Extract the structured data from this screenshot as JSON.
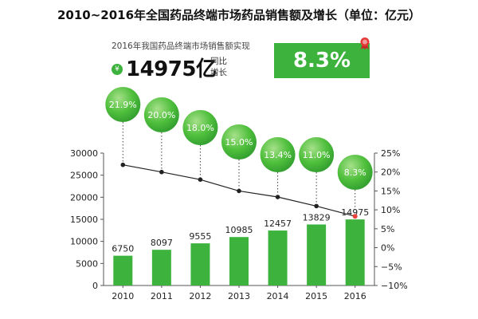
{
  "title": "2010~2016年全国药品终端市场药品销售额及增长（单位：亿元）",
  "header": {
    "subtitle": "2016年我国药品终端市场销售额实现",
    "currency_symbol": "¥",
    "amount": "14975亿",
    "growth_label_1": "同比",
    "growth_label_2": "增长",
    "growth_rate": "8.3%"
  },
  "colors": {
    "bar": "#3db23d",
    "bubble": "#3db23d",
    "line": "#222222",
    "last_point": "#e8403a"
  },
  "chart_data": {
    "type": "bar",
    "categories": [
      "2010",
      "2011",
      "2012",
      "2013",
      "2014",
      "2015",
      "2016"
    ],
    "series": [
      {
        "values": [
          6750,
          8097,
          9555,
          10985,
          12457,
          13829,
          14975
        ]
      },
      {
        "type": "line",
        "axis": "right",
        "values": [
          21.9,
          20.0,
          18.0,
          15.0,
          13.4,
          11.0,
          8.3
        ]
      }
    ],
    "bar_labels": [
      "6750",
      "8097",
      "9555",
      "10985",
      "12457",
      "13829",
      "14975"
    ],
    "bubble_labels": [
      "21.9%",
      "20.0%",
      "18.0%",
      "15.0%",
      "13.4%",
      "11.0%",
      "8.3%"
    ],
    "ylim": [
      0,
      30000
    ],
    "yticks": [
      0,
      5000,
      10000,
      15000,
      20000,
      25000,
      30000
    ],
    "ytick_labels": [
      "0",
      "5000",
      "10000",
      "15000",
      "20000",
      "25000",
      "30000"
    ],
    "y2lim": [
      -10,
      25
    ],
    "y2ticks": [
      -10,
      -5,
      0,
      5,
      10,
      15,
      20,
      25
    ],
    "y2tick_labels": [
      "−10%",
      "−5%",
      "0%",
      "5%",
      "10%",
      "15%",
      "20%",
      "25%"
    ],
    "grid": false
  }
}
